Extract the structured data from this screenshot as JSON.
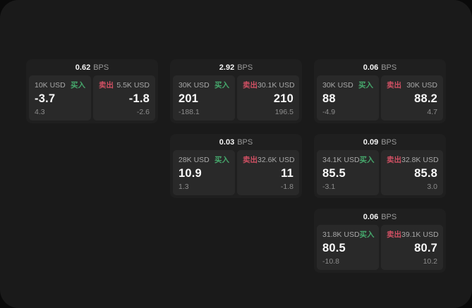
{
  "labels": {
    "unit": "BPS",
    "buy": "买入",
    "sell": "卖出"
  },
  "colors": {
    "outer_background": "#0a0a0a",
    "surface": "#1a1a1a",
    "card": "#1f1f1f",
    "panel": "#292929",
    "buy_green": "#46a86c",
    "sell_red": "#cf5063",
    "value_white": "#fafafa",
    "label_gray": "#a8a8a8",
    "sub_gray": "#8c8c8c"
  },
  "cards": [
    {
      "bps": "0.62",
      "buy": {
        "amount": "10K USD",
        "value": "-3.7",
        "sub": "4.3"
      },
      "sell": {
        "amount": "5.5K USD",
        "value": "-1.8",
        "sub": "-2.6"
      }
    },
    {
      "bps": "2.92",
      "buy": {
        "amount": "30K USD",
        "value": "201",
        "sub": "-188.1"
      },
      "sell": {
        "amount": "30.1K USD",
        "value": "210",
        "sub": "196.5"
      }
    },
    {
      "bps": "0.06",
      "buy": {
        "amount": "30K USD",
        "value": "88",
        "sub": "-4.9"
      },
      "sell": {
        "amount": "30K USD",
        "value": "88.2",
        "sub": "4.7"
      }
    },
    {
      "bps": "0.03",
      "buy": {
        "amount": "28K USD",
        "value": "10.9",
        "sub": "1.3"
      },
      "sell": {
        "amount": "32.6K USD",
        "value": "11",
        "sub": "-1.8"
      }
    },
    {
      "bps": "0.09",
      "buy": {
        "amount": "34.1K USD",
        "value": "85.5",
        "sub": "-3.1"
      },
      "sell": {
        "amount": "32.8K USD",
        "value": "85.8",
        "sub": "3.0"
      }
    },
    {
      "bps": "0.06",
      "buy": {
        "amount": "31.8K USD",
        "value": "80.5",
        "sub": "-10.8"
      },
      "sell": {
        "amount": "39.1K USD",
        "value": "80.7",
        "sub": "10.2"
      }
    }
  ]
}
